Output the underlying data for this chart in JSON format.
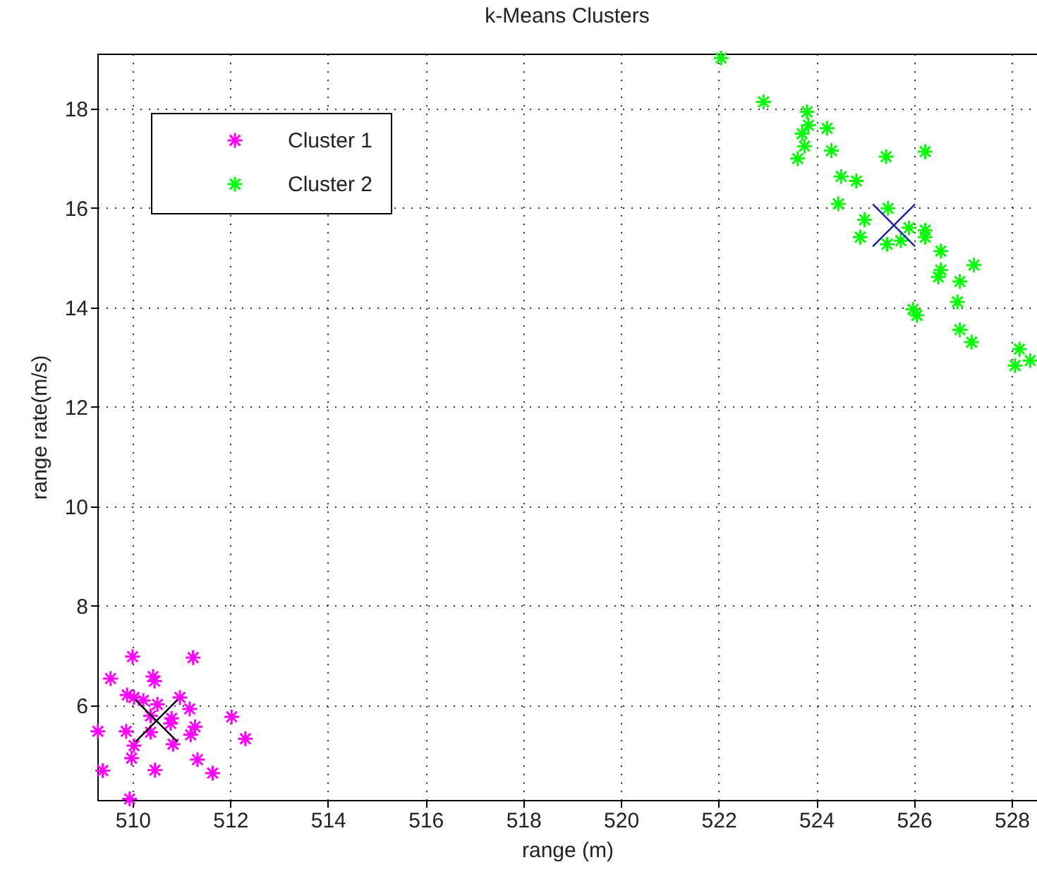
{
  "chart_data": {
    "type": "scatter",
    "title": "k-Means Clusters",
    "xlabel": "range (m)",
    "ylabel": "range rate(m/s)",
    "xlim": [
      509.28,
      528.52
    ],
    "xticks": [
      510,
      512,
      514,
      516,
      518,
      520,
      522,
      524,
      526,
      528
    ],
    "ylim": [
      4.1,
      19.1
    ],
    "yticks": [
      6,
      8,
      10,
      12,
      14,
      16,
      18
    ],
    "grid": true,
    "legend": "top left",
    "marker": "cross",
    "series": [
      {
        "name": "Cluster 1",
        "color": "#ff00ff",
        "x": [
          510.0,
          511.24,
          509.55,
          510.42,
          510.45,
          509.89,
          510.03,
          510.22,
          510.97,
          510.51,
          511.17,
          512.03,
          510.37,
          510.8,
          510.78,
          511.28,
          509.29,
          509.87,
          510.37,
          511.19,
          512.31,
          510.03,
          510.83,
          509.98,
          511.33,
          509.39,
          510.46,
          511.64,
          509.94
        ],
        "values": [
          6.98,
          6.96,
          6.54,
          6.58,
          6.49,
          6.21,
          6.16,
          6.1,
          6.16,
          6.02,
          5.93,
          5.77,
          5.79,
          5.74,
          5.64,
          5.57,
          5.48,
          5.48,
          5.46,
          5.41,
          5.33,
          5.19,
          5.22,
          4.94,
          4.91,
          4.69,
          4.7,
          4.64,
          4.12
        ]
      },
      {
        "name": "Cluster 2",
        "color": "#00ff00",
        "x": [
          522.05,
          522.92,
          523.81,
          523.84,
          524.22,
          523.71,
          523.76,
          523.62,
          524.31,
          525.43,
          526.23,
          524.51,
          524.82,
          524.45,
          524.99,
          525.47,
          524.9,
          525.45,
          525.73,
          525.9,
          526.23,
          526.23,
          526.55,
          526.55,
          526.5,
          527.23,
          526.94,
          526.89,
          525.98,
          526.06,
          526.94,
          527.18,
          528.16,
          528.07,
          528.38
        ],
        "values": [
          19.01,
          18.13,
          17.93,
          17.66,
          17.6,
          17.49,
          17.24,
          16.99,
          17.15,
          17.03,
          17.13,
          16.63,
          16.54,
          16.08,
          15.76,
          15.99,
          15.41,
          15.27,
          15.34,
          15.6,
          15.55,
          15.41,
          15.13,
          14.75,
          14.61,
          14.85,
          14.52,
          14.11,
          13.96,
          13.84,
          13.55,
          13.3,
          13.16,
          12.83,
          12.93
        ]
      },
      {
        "color": "#000000",
        "marker": "cross",
        "x": [
          510.49
        ],
        "values": [
          5.69
        ]
      },
      {
        "color": "#1f1fa0",
        "marker": "cross",
        "x": [
          525.59
        ],
        "values": [
          15.65
        ]
      }
    ]
  }
}
